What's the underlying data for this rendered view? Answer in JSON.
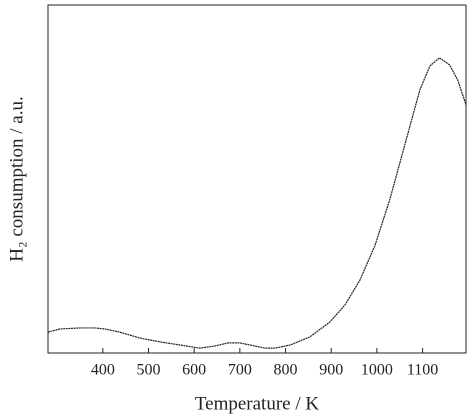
{
  "chart_data": {
    "type": "line",
    "xlabel": "Temperature / K",
    "ylabel": "H₂ consumption / a.u.",
    "x": [
      280,
      306,
      350,
      383,
      405,
      437,
      481,
      525,
      569,
      612,
      645,
      674,
      700,
      733,
      755,
      777,
      810,
      853,
      897,
      930,
      963,
      996,
      1028,
      1061,
      1094,
      1116,
      1137,
      1159,
      1177,
      1195
    ],
    "series": [
      {
        "color": "#222222",
        "values": [
          6.0,
          6.9,
          7.2,
          7.2,
          6.9,
          6.0,
          4.3,
          3.2,
          2.3,
          1.4,
          2.0,
          2.9,
          2.9,
          2.0,
          1.4,
          1.4,
          2.3,
          4.6,
          8.9,
          13.8,
          21,
          31,
          44,
          59.8,
          75.6,
          82.5,
          84.8,
          82.8,
          78.4,
          71.3
        ]
      }
    ],
    "xlim": [
      280,
      1195
    ],
    "xticks": [
      400,
      500,
      600,
      700,
      800,
      900,
      1000,
      1100
    ],
    "ylim": [
      0,
      100
    ]
  }
}
